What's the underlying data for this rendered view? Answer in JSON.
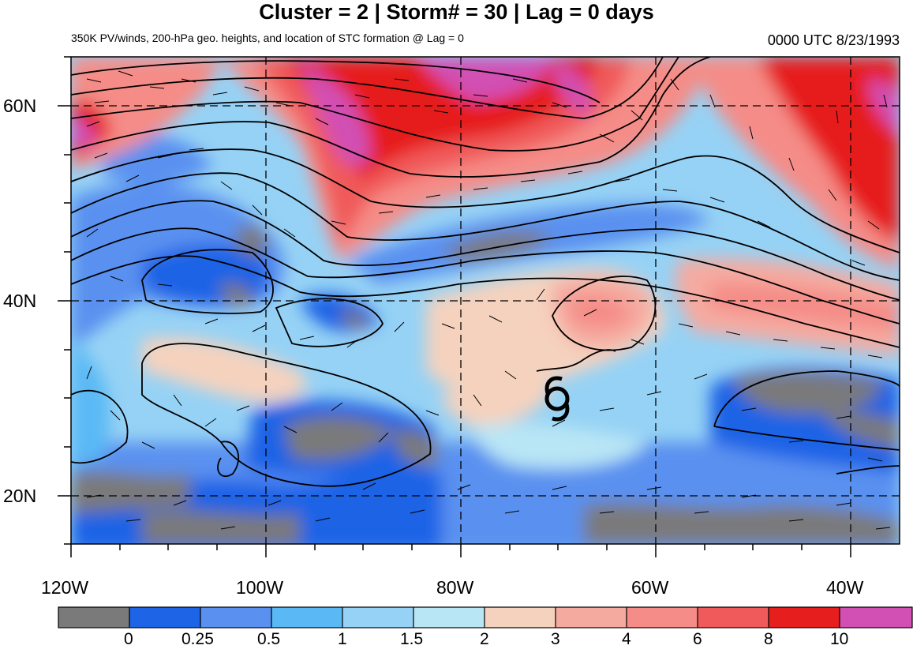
{
  "title": "Cluster = 2 | Storm# = 30 | Lag = 0 days",
  "subtitle": "350K PV/winds, 200-hPa geo. heights, and location of STC formation @ Lag = 0",
  "datetime": "0000 UTC  8/23/1993",
  "map": {
    "lat_labels": [
      "60N",
      "40N",
      "20N"
    ],
    "lon_labels": [
      "120W",
      "100W",
      "80W",
      "60W",
      "40W"
    ],
    "storm_symbol": "tropical-cyclone-icon",
    "gridlines": "dashed"
  },
  "colorbar": {
    "labels": [
      "0",
      "0.25",
      "0.5",
      "1",
      "1.5",
      "2",
      "3",
      "4",
      "6",
      "8",
      "10"
    ],
    "colors": [
      "#7a7a7a",
      "#1e64e6",
      "#5a91f0",
      "#5ab9f5",
      "#96d2f5",
      "#b9e6f5",
      "#f5d2be",
      "#f5aaa0",
      "#f58c87",
      "#f05a5a",
      "#e61e1e",
      "#d250b4"
    ]
  }
}
